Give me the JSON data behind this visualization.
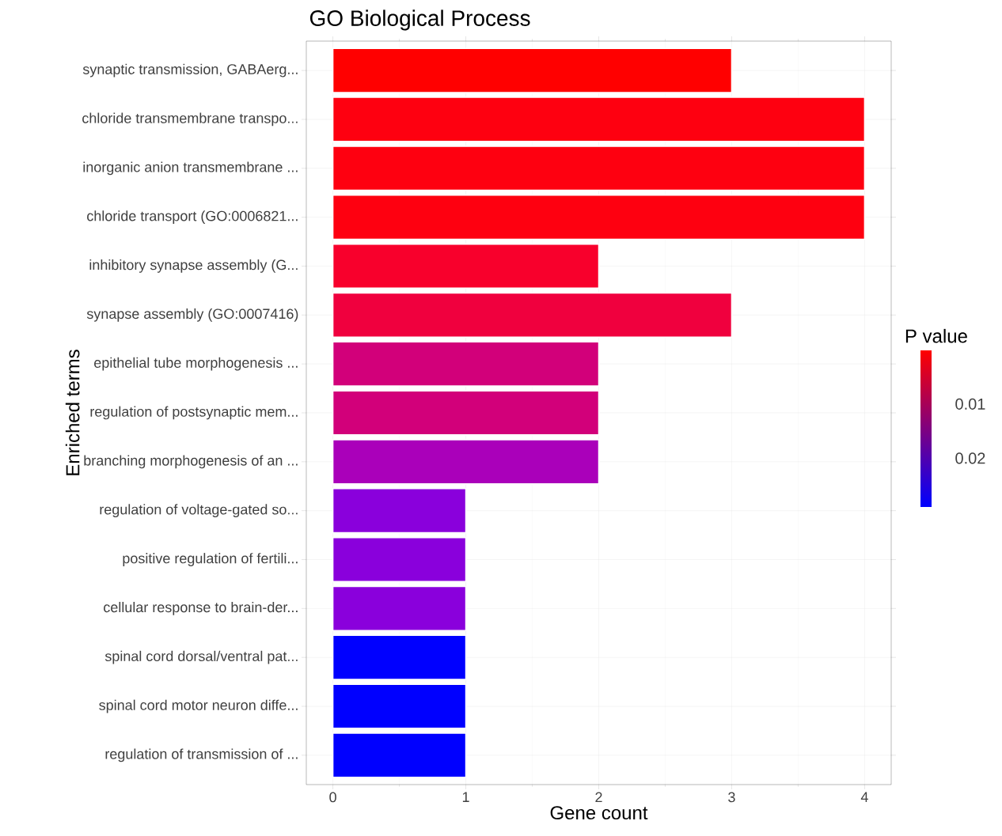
{
  "chart_data": {
    "type": "bar",
    "orientation": "horizontal",
    "title": "GO Biological Process",
    "xlabel": "Gene count",
    "ylabel": "Enriched terms",
    "categories": [
      "synaptic transmission, GABAerg...",
      "chloride transmembrane transpo...",
      "inorganic anion transmembrane ...",
      "chloride transport (GO:0006821...",
      "inhibitory synapse assembly (G...",
      "synapse assembly (GO:0007416)",
      "epithelial tube morphogenesis ...",
      "regulation of postsynaptic mem...",
      "branching morphogenesis of an ...",
      "regulation of voltage-gated so...",
      "positive regulation of fertili...",
      "cellular response to brain-der...",
      "spinal cord dorsal/ventral pat...",
      "spinal cord motor neuron diffe...",
      "regulation of transmission of ..."
    ],
    "values": [
      3,
      4,
      4,
      4,
      2,
      3,
      2,
      2,
      2,
      1,
      1,
      1,
      1,
      1,
      1
    ],
    "colors": [
      "#ff0000",
      "#fe0010",
      "#fe0010",
      "#fe0010",
      "#f8002c",
      "#f0003e",
      "#d2007a",
      "#d2007a",
      "#aa00ba",
      "#8a00dc",
      "#8a00dc",
      "#8a00dc",
      "#0000ff",
      "#0000ff",
      "#0000ff"
    ],
    "xlim": [
      -0.2,
      4.2
    ],
    "xticks": [
      0,
      1,
      2,
      3,
      4
    ],
    "grid": true,
    "clabel": "P value",
    "clim": [
      0.029,
      0.0001
    ],
    "cticks": [
      0.01,
      0.02
    ]
  }
}
